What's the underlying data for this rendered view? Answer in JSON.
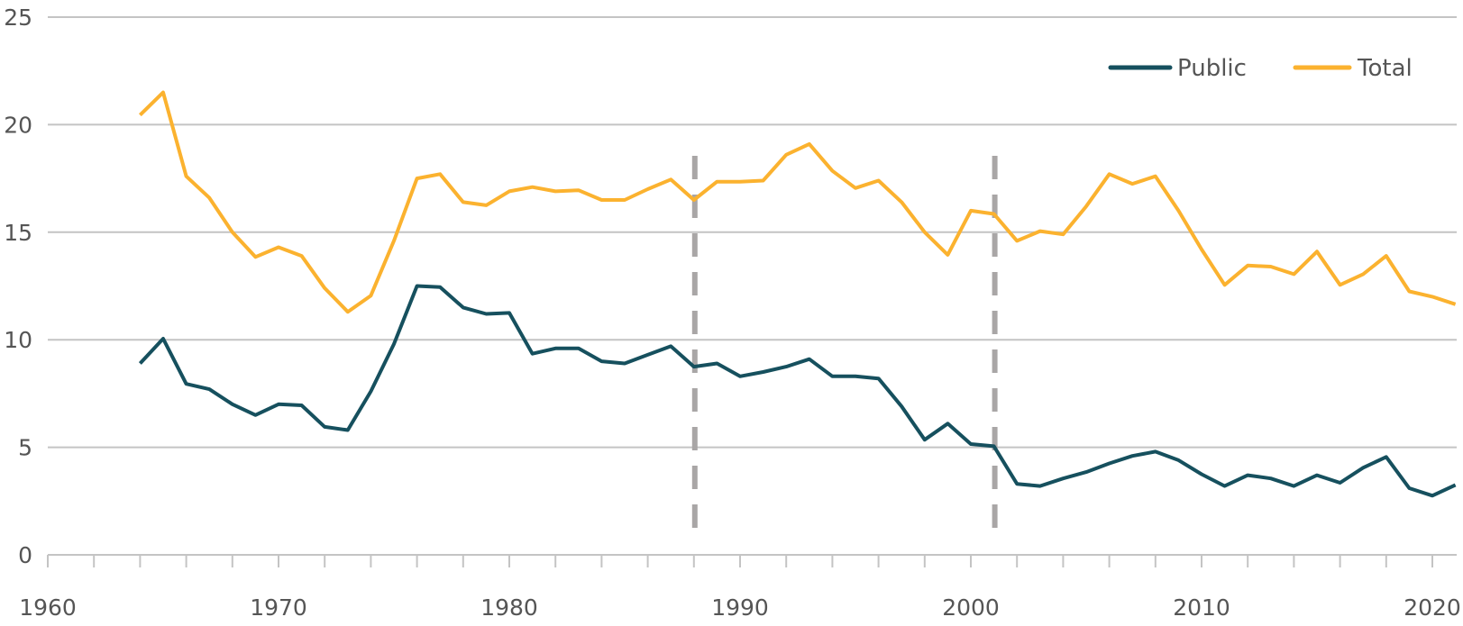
{
  "chart_data": {
    "type": "line",
    "title": "",
    "xlabel": "",
    "ylabel": "",
    "xlim": [
      1960,
      2021
    ],
    "ylim": [
      0,
      25
    ],
    "y_ticks": [
      0,
      5,
      10,
      15,
      20,
      25
    ],
    "x_tick_labels": [
      1960,
      1970,
      1980,
      1990,
      2000,
      2010,
      2020
    ],
    "x_minor_tick_step": 2,
    "grid": "horizontal",
    "legend_position": "top-right",
    "vertical_markers": [
      {
        "x": 1988,
        "style": "dashed",
        "color": "#a9a6a6"
      },
      {
        "x": 2001,
        "style": "dashed",
        "color": "#a9a6a6"
      }
    ],
    "x": [
      1964,
      1965,
      1966,
      1967,
      1968,
      1969,
      1970,
      1971,
      1972,
      1973,
      1974,
      1975,
      1976,
      1977,
      1978,
      1979,
      1980,
      1981,
      1982,
      1983,
      1984,
      1985,
      1986,
      1987,
      1988,
      1989,
      1990,
      1991,
      1992,
      1993,
      1994,
      1995,
      1996,
      1997,
      1998,
      1999,
      2000,
      2001,
      2002,
      2003,
      2004,
      2005,
      2006,
      2007,
      2008,
      2009,
      2010,
      2011,
      2012,
      2013,
      2014,
      2015,
      2016,
      2017,
      2018,
      2019,
      2020,
      2021
    ],
    "series": [
      {
        "name": "Public",
        "color": "#16505e",
        "values": [
          8.9,
          10.05,
          7.95,
          7.7,
          7.0,
          6.5,
          7.0,
          6.95,
          5.95,
          5.8,
          7.6,
          9.8,
          12.5,
          12.45,
          11.5,
          11.2,
          11.25,
          9.35,
          9.6,
          9.6,
          9.0,
          8.9,
          9.3,
          9.7,
          8.75,
          8.9,
          8.3,
          8.5,
          8.75,
          9.1,
          8.3,
          8.3,
          8.2,
          6.9,
          5.35,
          6.1,
          5.15,
          5.05,
          3.3,
          3.2,
          3.55,
          3.85,
          4.25,
          4.6,
          4.8,
          4.4,
          3.75,
          3.2,
          3.7,
          3.55,
          3.2,
          3.7,
          3.35,
          4.05,
          4.55,
          3.1,
          2.75,
          3.25
        ]
      },
      {
        "name": "Total",
        "color": "#fbb22f",
        "values": [
          20.45,
          21.5,
          17.6,
          16.6,
          15.0,
          13.85,
          14.3,
          13.9,
          12.4,
          11.3,
          12.05,
          14.6,
          17.5,
          17.7,
          16.4,
          16.25,
          16.9,
          17.1,
          16.9,
          16.95,
          16.5,
          16.5,
          17.0,
          17.45,
          16.5,
          17.35,
          17.35,
          17.4,
          18.6,
          19.1,
          17.85,
          17.05,
          17.4,
          16.4,
          15.0,
          13.95,
          16.0,
          15.85,
          14.6,
          15.05,
          14.9,
          16.2,
          17.7,
          17.25,
          17.6,
          16.0,
          14.2,
          12.55,
          13.45,
          13.4,
          13.05,
          14.1,
          12.55,
          13.05,
          13.9,
          12.25,
          12.0,
          11.65
        ]
      }
    ]
  },
  "legend": {
    "items": [
      {
        "label": "Public",
        "color": "#16505e"
      },
      {
        "label": "Total",
        "color": "#fbb22f"
      }
    ]
  },
  "axis": {
    "y_labels": [
      "0",
      "5",
      "10",
      "15",
      "20",
      "25"
    ],
    "x_labels": [
      "1960",
      "1970",
      "1980",
      "1990",
      "2000",
      "2010",
      "2020"
    ]
  },
  "style": {
    "grid_color": "#c4c4c4",
    "tick_color": "#c4c4c4",
    "marker_color": "#a9a6a6",
    "text_color": "#555555"
  }
}
